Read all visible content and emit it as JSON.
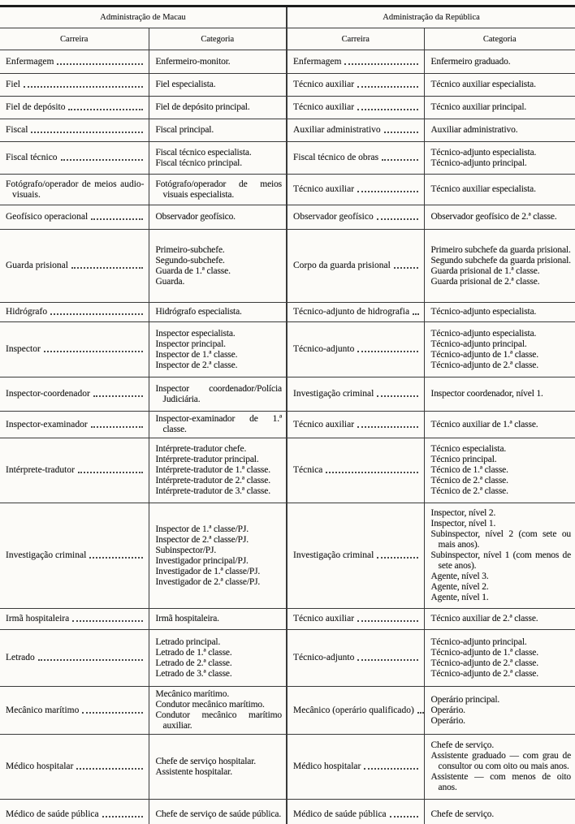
{
  "table": {
    "header": {
      "macau": "Administração de Macau",
      "republica": "Administração da República",
      "carreira": "Carreira",
      "categoria": "Categoria"
    },
    "rows": [
      {
        "macau": {
          "carreira": "Enfermagem",
          "leader": true,
          "categoria": [
            "Enfermeiro-monitor."
          ]
        },
        "republica": {
          "carreira": "Enfermagem",
          "leader": true,
          "categoria": [
            "Enfermeiro graduado."
          ]
        }
      },
      {
        "macau": {
          "carreira": "Fiel",
          "leader": true,
          "categoria": [
            "Fiel especialista."
          ]
        },
        "republica": {
          "carreira": "Técnico auxiliar",
          "leader": true,
          "categoria": [
            "Técnico auxiliar especialista."
          ]
        }
      },
      {
        "macau": {
          "carreira": "Fiel de depósito",
          "leader": true,
          "categoria": [
            "Fiel de depósito principal."
          ]
        },
        "republica": {
          "carreira": "Técnico auxiliar",
          "leader": true,
          "categoria": [
            "Técnico auxiliar principal."
          ]
        }
      },
      {
        "macau": {
          "carreira": "Fiscal",
          "leader": true,
          "categoria": [
            "Fiscal principal."
          ]
        },
        "republica": {
          "carreira": "Auxiliar administrativo",
          "leader": true,
          "categoria": [
            "Auxiliar administrativo."
          ]
        }
      },
      {
        "macau": {
          "carreira": "Fiscal técnico",
          "leader": true,
          "categoria": [
            "Fiscal técnico especialista.",
            "Fiscal técnico principal."
          ]
        },
        "republica": {
          "carreira": "Fiscal técnico de obras",
          "leader": true,
          "categoria": [
            "Técnico-adjunto especialista.",
            "Técnico-adjunto principal."
          ]
        }
      },
      {
        "macau": {
          "carreira": "Fotógrafo/operador de meios audio-visuais.",
          "leader": false,
          "categoria": [
            "Fotógrafo/operador de meios visuais especialista."
          ]
        },
        "republica": {
          "carreira": "Técnico auxiliar",
          "leader": true,
          "categoria": [
            "Técnico auxiliar especialista."
          ]
        }
      },
      {
        "macau": {
          "carreira": "Geofísico operacional",
          "leader": true,
          "categoria": [
            "Observador geofísico."
          ]
        },
        "republica": {
          "carreira": "Observador geofísico",
          "leader": true,
          "categoria": [
            "Observador geofísico de 2.ª classe."
          ]
        }
      },
      {
        "macau": {
          "carreira": "Guarda prisional",
          "leader": true,
          "categoria": [
            "Primeiro-subchefe.",
            "Segundo-subchefe.",
            "Guarda de 1.ª classe.",
            "Guarda."
          ]
        },
        "republica": {
          "carreira": "Corpo da guarda prisional",
          "leader": true,
          "categoria": [
            "Primeiro subchefe da guarda prisional.",
            "Segundo subchefe da guarda prisional.",
            "Guarda prisional de 1.ª classe.",
            "Guarda prisional de 2.ª classe."
          ]
        }
      },
      {
        "macau": {
          "carreira": "Hidrógrafo",
          "leader": true,
          "categoria": [
            "Hidrógrafo especialista."
          ]
        },
        "republica": {
          "carreira": "Técnico-adjunto de hidrografia",
          "leader": true,
          "categoria": [
            "Técnico-adjunto especialista."
          ]
        }
      },
      {
        "macau": {
          "carreira": "Inspector",
          "leader": true,
          "categoria": [
            "Inspector especialista.",
            "Inspector principal.",
            "Inspector de 1.ª classe.",
            "Inspector de 2.ª classe."
          ]
        },
        "republica": {
          "carreira": "Técnico-adjunto",
          "leader": true,
          "categoria": [
            "Técnico-adjunto especialista.",
            "Técnico-adjunto principal.",
            "Técnico-adjunto de 1.ª classe.",
            "Técnico-adjunto de 2.ª classe."
          ]
        }
      },
      {
        "macau": {
          "carreira": "Inspector-coordenador",
          "leader": true,
          "categoria": [
            "Inspector coordenador/Polícia Judiciária."
          ]
        },
        "republica": {
          "carreira": "Investigação criminal",
          "leader": true,
          "categoria": [
            "Inspector coordenador, nível 1."
          ]
        }
      },
      {
        "macau": {
          "carreira": "Inspector-examinador",
          "leader": true,
          "categoria": [
            "Inspector-examinador de 1.ª classe."
          ]
        },
        "republica": {
          "carreira": "Técnico auxiliar",
          "leader": true,
          "categoria": [
            "Técnico auxiliar de 1.ª classe."
          ]
        }
      },
      {
        "macau": {
          "carreira": "Intérprete-tradutor",
          "leader": true,
          "categoria": [
            "Intérprete-tradutor chefe.",
            "Intérprete-tradutor principal.",
            "Intérprete-tradutor de 1.ª classe.",
            "Intérprete-tradutor de 2.ª classe.",
            "Intérprete-tradutor de 3.ª classe."
          ]
        },
        "republica": {
          "carreira": "Técnica",
          "leader": true,
          "categoria": [
            "Técnico especialista.",
            "Técnico principal.",
            "Técnico de 1.ª classe.",
            "Técnico de 2.ª classe.",
            "Técnico de 2.ª classe."
          ]
        }
      },
      {
        "macau": {
          "carreira": "Investigação criminal",
          "leader": true,
          "categoria": [
            "Inspector de 1.ª classe/PJ.",
            "Inspector de 2.ª classe/PJ.",
            "Subinspector/PJ.",
            "Investigador principal/PJ.",
            "Investigador de 1.ª classe/PJ.",
            "Investigador de 2.ª classe/PJ."
          ]
        },
        "republica": {
          "carreira": "Investigação criminal",
          "leader": true,
          "categoria": [
            "Inspector, nível 2.",
            "Inspector, nível 1.",
            "Subinspector, nível 2 (com sete ou mais anos).",
            "Subinspector, nível 1 (com menos de sete anos).",
            "Agente, nível 3.",
            "Agente, nível 2.",
            "Agente, nível 1."
          ]
        }
      },
      {
        "macau": {
          "carreira": "Irmã hospitaleira",
          "leader": true,
          "categoria": [
            "Irmã hospitaleira."
          ]
        },
        "republica": {
          "carreira": "Técnico auxiliar",
          "leader": true,
          "categoria": [
            "Técnico auxiliar de 2.ª classe."
          ]
        }
      },
      {
        "macau": {
          "carreira": "Letrado",
          "leader": true,
          "categoria": [
            "Letrado principal.",
            "Letrado de 1.ª classe.",
            "Letrado de 2.ª classe.",
            "Letrado de 3.ª classe."
          ]
        },
        "republica": {
          "carreira": "Técnico-adjunto",
          "leader": true,
          "categoria": [
            "Técnico-adjunto principal.",
            "Técnico-adjunto de 1.ª classe.",
            "Técnico-adjunto de 2.ª classe.",
            "Técnico-adjunto de 2.ª classe."
          ]
        }
      },
      {
        "macau": {
          "carreira": "Mecânico marítimo",
          "leader": true,
          "categoria": [
            "Mecânico marítimo.",
            "Condutor mecânico marítimo.",
            "Condutor mecânico marítimo auxiliar."
          ]
        },
        "republica": {
          "carreira": "Mecânico (operário qualificado)",
          "leader": true,
          "categoria": [
            "Operário principal.",
            "Operário.",
            "Operário."
          ]
        }
      },
      {
        "macau": {
          "carreira": "Médico hospitalar",
          "leader": true,
          "categoria": [
            "Chefe de serviço hospitalar.",
            "Assistente hospitalar."
          ]
        },
        "republica": {
          "carreira": "Médico hospitalar",
          "leader": true,
          "categoria": [
            "Chefe de serviço.",
            "Assistente graduado — com grau de consultor ou com oito ou mais anos.",
            "Assistente — com menos de oito anos."
          ]
        }
      },
      {
        "macau": {
          "carreira": "Médico de saúde pública",
          "leader": true,
          "categoria": [
            "Chefe de serviço de saúde pública."
          ]
        },
        "republica": {
          "carreira": "Médico de saúde pública",
          "leader": true,
          "categoria": [
            "Chefe de serviço."
          ]
        }
      }
    ]
  }
}
